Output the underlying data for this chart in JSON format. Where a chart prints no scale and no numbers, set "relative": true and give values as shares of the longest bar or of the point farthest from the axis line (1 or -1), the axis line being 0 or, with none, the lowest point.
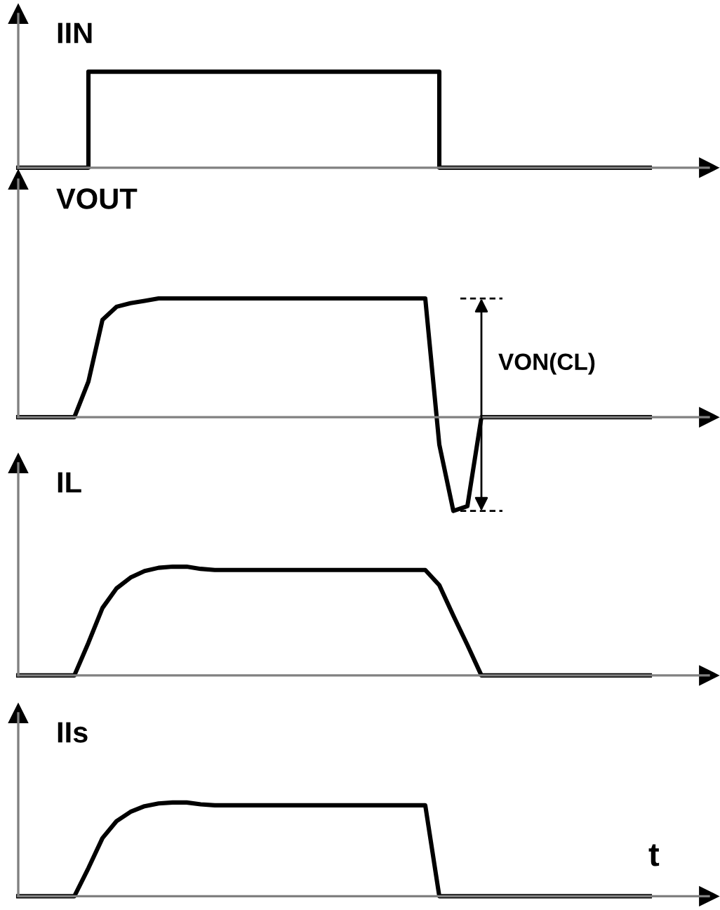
{
  "chart_data": [
    {
      "type": "step",
      "title": "IIN",
      "relative": true,
      "color": "#000000",
      "categories": [
        null,
        null,
        null,
        null,
        null,
        null,
        null,
        null,
        null,
        null,
        null,
        null,
        null,
        null,
        null,
        null,
        null,
        null,
        null,
        null,
        null,
        null,
        null,
        null,
        null,
        null,
        null,
        null,
        null,
        null,
        null,
        null,
        null,
        null,
        null,
        null,
        null,
        null,
        null,
        null,
        null,
        null,
        null,
        null,
        null,
        null
      ],
      "values": [
        0,
        0,
        0,
        0,
        0,
        1,
        1,
        1,
        1,
        1,
        1,
        1,
        1,
        1,
        1,
        1,
        1,
        1,
        1,
        1,
        1,
        1,
        1,
        1,
        1,
        1,
        1,
        1,
        1,
        1,
        0,
        0,
        0,
        0,
        0,
        0,
        0,
        0,
        0,
        0,
        0,
        0,
        0,
        0,
        0,
        0
      ]
    },
    {
      "type": "line",
      "title": "VOUT",
      "relative": true,
      "color": "#000000",
      "annotations": [
        "VON(CL)"
      ],
      "categories": [
        null,
        null,
        null,
        null,
        null,
        null,
        null,
        null,
        null,
        null,
        null,
        null,
        null,
        null,
        null,
        null,
        null,
        null,
        null,
        null,
        null,
        null,
        null,
        null,
        null,
        null,
        null,
        null,
        null,
        null,
        null,
        null,
        null,
        null,
        null,
        null,
        null,
        null,
        null,
        null,
        null,
        null,
        null,
        null,
        null,
        null
      ],
      "values": [
        0,
        0,
        0,
        0,
        0,
        0.3,
        0.82,
        0.93,
        0.96,
        0.98,
        1,
        1,
        1,
        1,
        1,
        1,
        1,
        1,
        1,
        1,
        1,
        1,
        1,
        1,
        1,
        1,
        1,
        1,
        1,
        1,
        -0.23,
        -0.79,
        -0.75,
        0,
        0,
        0,
        0,
        0,
        0,
        0,
        0,
        0,
        0,
        0,
        0,
        0
      ]
    },
    {
      "type": "line",
      "title": "IL",
      "relative": true,
      "color": "#000000",
      "categories": [
        null,
        null,
        null,
        null,
        null,
        null,
        null,
        null,
        null,
        null,
        null,
        null,
        null,
        null,
        null,
        null,
        null,
        null,
        null,
        null,
        null,
        null,
        null,
        null,
        null,
        null,
        null,
        null,
        null,
        null,
        null,
        null,
        null,
        null,
        null,
        null,
        null,
        null,
        null,
        null,
        null,
        null,
        null,
        null,
        null,
        null
      ],
      "values": [
        0,
        0,
        0,
        0,
        0,
        0.3,
        0.62,
        0.8,
        0.9,
        0.96,
        0.99,
        1,
        1,
        0.98,
        0.97,
        0.97,
        0.97,
        0.97,
        0.97,
        0.97,
        0.97,
        0.97,
        0.97,
        0.97,
        0.97,
        0.97,
        0.97,
        0.97,
        0.97,
        0.97,
        0.83,
        0.55,
        0.28,
        0,
        0,
        0,
        0,
        0,
        0,
        0,
        0,
        0,
        0,
        0,
        0,
        0
      ]
    },
    {
      "type": "line",
      "title": "IIs",
      "xlabel": "t",
      "relative": true,
      "color": "#000000",
      "categories": [
        null,
        null,
        null,
        null,
        null,
        null,
        null,
        null,
        null,
        null,
        null,
        null,
        null,
        null,
        null,
        null,
        null,
        null,
        null,
        null,
        null,
        null,
        null,
        null,
        null,
        null,
        null,
        null,
        null,
        null,
        null,
        null,
        null,
        null,
        null,
        null,
        null,
        null,
        null,
        null,
        null,
        null,
        null,
        null,
        null,
        null
      ],
      "values": [
        0,
        0,
        0,
        0,
        0,
        0.3,
        0.62,
        0.8,
        0.9,
        0.96,
        0.99,
        1,
        1,
        0.98,
        0.97,
        0.97,
        0.97,
        0.97,
        0.97,
        0.97,
        0.97,
        0.97,
        0.97,
        0.97,
        0.97,
        0.97,
        0.97,
        0.97,
        0.97,
        0.97,
        0,
        0,
        0,
        0,
        0,
        0,
        0,
        0,
        0,
        0,
        0,
        0,
        0,
        0,
        0,
        0
      ]
    }
  ]
}
